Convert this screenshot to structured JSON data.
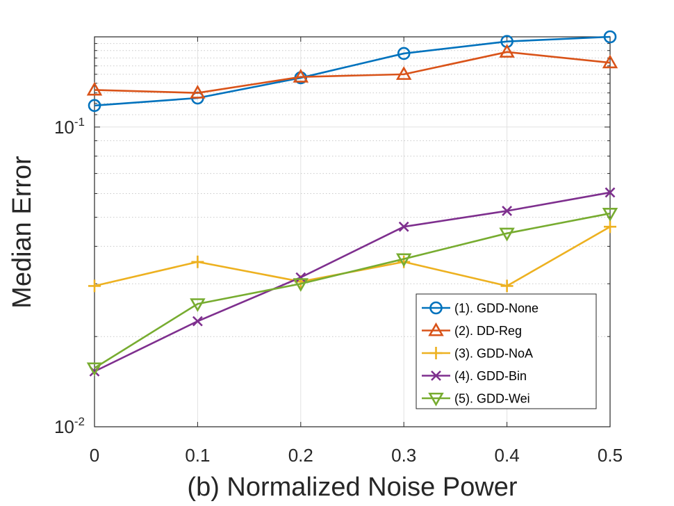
{
  "chart_data": {
    "type": "line",
    "xlabel": "(b) Normalized Noise Power",
    "ylabel": "Median Error",
    "yscale": "log",
    "xlim": [
      0,
      0.5
    ],
    "ylim": [
      0.01,
      0.2
    ],
    "grid": true,
    "legend_position": "lower-right",
    "x_ticks": [
      "0",
      "0.1",
      "0.2",
      "0.3",
      "0.4",
      "0.5"
    ],
    "y_ticks": [
      {
        "value": 0.01,
        "base": "10",
        "exponent": "-2"
      },
      {
        "value": 0.1,
        "base": "10",
        "exponent": "-1"
      }
    ],
    "x": [
      0,
      0.1,
      0.2,
      0.3,
      0.4,
      0.5
    ],
    "series": [
      {
        "name": "(1). GDD-None",
        "marker": "circle",
        "color": "#0072BD",
        "values": [
          0.118,
          0.125,
          0.146,
          0.176,
          0.193,
          0.2
        ]
      },
      {
        "name": "(2). DD-Reg",
        "marker": "triangle-up",
        "color": "#D95319",
        "values": [
          0.133,
          0.13,
          0.147,
          0.15,
          0.178,
          0.164
        ]
      },
      {
        "name": "(3). GDD-NoA",
        "marker": "plus",
        "color": "#EDB120",
        "values": [
          0.0295,
          0.0355,
          0.0305,
          0.0355,
          0.0295,
          0.0465
        ]
      },
      {
        "name": "(4). GDD-Bin",
        "marker": "x",
        "color": "#7E2F8E",
        "values": [
          0.0153,
          0.0225,
          0.0315,
          0.0465,
          0.0525,
          0.0605
        ]
      },
      {
        "name": "(5). GDD-Wei",
        "marker": "triangle-down",
        "color": "#77AC30",
        "values": [
          0.0157,
          0.0257,
          0.03,
          0.0363,
          0.0442,
          0.0515
        ]
      }
    ]
  }
}
